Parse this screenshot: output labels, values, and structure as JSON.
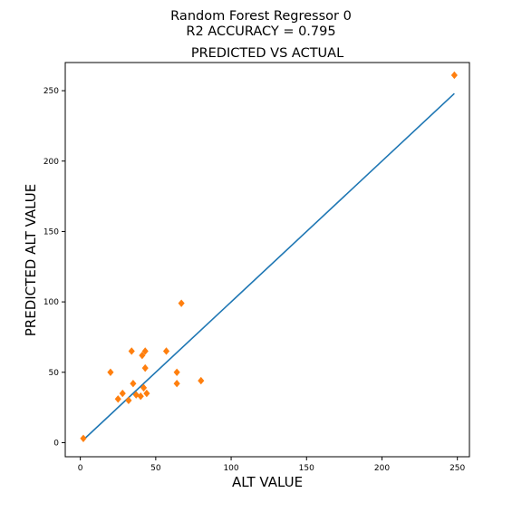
{
  "figure": {
    "suptitle_line1": "Random Forest Regressor 0",
    "suptitle_line2": "R2 ACCURACY = 0.795"
  },
  "chart_data": {
    "type": "scatter",
    "title": "PREDICTED VS ACTUAL",
    "xlabel": "ALT VALUE",
    "ylabel": "PREDICTED ALT VALUE",
    "xlim": [
      -10,
      258
    ],
    "ylim": [
      -10,
      270
    ],
    "xticks": [
      0,
      50,
      100,
      150,
      200,
      250
    ],
    "yticks": [
      0,
      50,
      100,
      150,
      200,
      250
    ],
    "grid": false,
    "line_series": {
      "color": "#1f77b4",
      "x": [
        2,
        248
      ],
      "y": [
        2,
        248
      ]
    },
    "scatter_series": {
      "color": "#ff7f0e",
      "marker": "diamond",
      "points": [
        [
          2,
          3
        ],
        [
          20,
          50
        ],
        [
          25,
          31
        ],
        [
          28,
          35
        ],
        [
          32,
          30
        ],
        [
          34,
          65
        ],
        [
          35,
          42
        ],
        [
          37,
          34
        ],
        [
          40,
          33
        ],
        [
          41,
          62
        ],
        [
          42,
          39
        ],
        [
          43,
          65
        ],
        [
          43,
          53
        ],
        [
          44,
          35
        ],
        [
          57,
          65
        ],
        [
          64,
          50
        ],
        [
          64,
          42
        ],
        [
          67,
          99
        ],
        [
          80,
          44
        ],
        [
          248,
          261
        ]
      ]
    }
  }
}
